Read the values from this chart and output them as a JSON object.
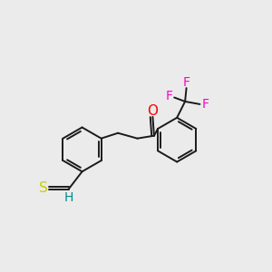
{
  "bg_color": "#ebebeb",
  "bond_color": "#1a1a1a",
  "O_color": "#ff0000",
  "S_color": "#cccc00",
  "F_color": "#ff00cc",
  "H_color": "#008b8b",
  "line_width": 1.4,
  "figsize": [
    3.0,
    3.0
  ],
  "dpi": 100,
  "xlim": [
    0,
    10
  ],
  "ylim": [
    0,
    10
  ]
}
